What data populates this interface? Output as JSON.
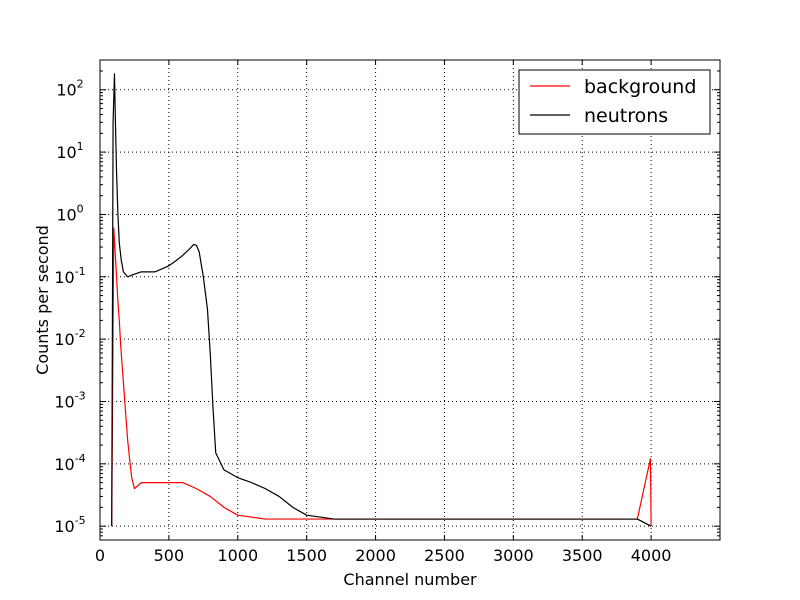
{
  "chart_data": {
    "type": "line",
    "xlabel": "Channel number",
    "ylabel": "Counts per second",
    "xlim": [
      0,
      4500
    ],
    "ylim": [
      6e-06,
      300
    ],
    "yscale": "log",
    "grid": true,
    "legend_position": "top-right",
    "x_ticks": [
      0,
      500,
      1000,
      1500,
      2000,
      2500,
      3000,
      3500,
      4000
    ],
    "y_ticks": [
      {
        "value": 1e-05,
        "base": "10",
        "exp": "-5"
      },
      {
        "value": 0.0001,
        "base": "10",
        "exp": "-4"
      },
      {
        "value": 0.001,
        "base": "10",
        "exp": "-3"
      },
      {
        "value": 0.01,
        "base": "10",
        "exp": "-2"
      },
      {
        "value": 0.1,
        "base": "10",
        "exp": "-1"
      },
      {
        "value": 1,
        "base": "10",
        "exp": "0"
      },
      {
        "value": 10,
        "base": "10",
        "exp": "1"
      },
      {
        "value": 100,
        "base": "10",
        "exp": "2"
      }
    ],
    "series": [
      {
        "name": "background",
        "color": "#ff0000",
        "points": [
          [
            85,
            1e-05
          ],
          [
            100,
            0.6
          ],
          [
            110,
            0.25
          ],
          [
            120,
            0.1
          ],
          [
            130,
            0.04
          ],
          [
            140,
            0.02
          ],
          [
            150,
            0.008
          ],
          [
            160,
            0.004
          ],
          [
            170,
            0.002
          ],
          [
            180,
            0.001
          ],
          [
            190,
            0.0005
          ],
          [
            200,
            0.00025
          ],
          [
            215,
            0.00012
          ],
          [
            230,
            6e-05
          ],
          [
            250,
            4e-05
          ],
          [
            300,
            5e-05
          ],
          [
            400,
            5e-05
          ],
          [
            500,
            5e-05
          ],
          [
            600,
            5e-05
          ],
          [
            700,
            4e-05
          ],
          [
            800,
            3e-05
          ],
          [
            900,
            2e-05
          ],
          [
            1000,
            1.5e-05
          ],
          [
            1200,
            1.3e-05
          ],
          [
            1500,
            1.3e-05
          ],
          [
            2000,
            1.3e-05
          ],
          [
            2500,
            1.3e-05
          ],
          [
            3000,
            1.3e-05
          ],
          [
            3500,
            1.3e-05
          ],
          [
            3900,
            1.3e-05
          ],
          [
            3995,
            0.00012
          ],
          [
            4000,
            1e-05
          ]
        ]
      },
      {
        "name": "neutrons",
        "color": "#000000",
        "points": [
          [
            85,
            1e-05
          ],
          [
            95,
            30
          ],
          [
            105,
            180
          ],
          [
            112,
            30
          ],
          [
            120,
            5
          ],
          [
            130,
            1
          ],
          [
            140,
            0.35
          ],
          [
            155,
            0.18
          ],
          [
            170,
            0.12
          ],
          [
            200,
            0.1
          ],
          [
            250,
            0.11
          ],
          [
            300,
            0.12
          ],
          [
            400,
            0.12
          ],
          [
            500,
            0.15
          ],
          [
            550,
            0.18
          ],
          [
            600,
            0.22
          ],
          [
            650,
            0.28
          ],
          [
            680,
            0.33
          ],
          [
            700,
            0.32
          ],
          [
            720,
            0.25
          ],
          [
            750,
            0.1
          ],
          [
            780,
            0.03
          ],
          [
            800,
            0.006
          ],
          [
            820,
            0.0008
          ],
          [
            840,
            0.00015
          ],
          [
            900,
            8e-05
          ],
          [
            1000,
            6e-05
          ],
          [
            1100,
            5e-05
          ],
          [
            1200,
            4e-05
          ],
          [
            1300,
            3e-05
          ],
          [
            1400,
            2e-05
          ],
          [
            1500,
            1.5e-05
          ],
          [
            1700,
            1.3e-05
          ],
          [
            2000,
            1.3e-05
          ],
          [
            2500,
            1.3e-05
          ],
          [
            3000,
            1.3e-05
          ],
          [
            3500,
            1.3e-05
          ],
          [
            3900,
            1.3e-05
          ],
          [
            4000,
            1e-05
          ]
        ]
      }
    ]
  }
}
